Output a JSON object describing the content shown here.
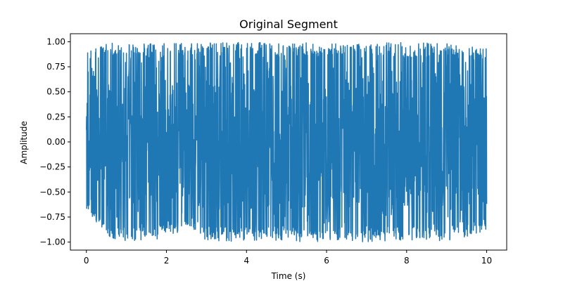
{
  "chart_data": {
    "type": "line",
    "title": "Original Segment",
    "xlabel": "Time (s)",
    "ylabel": "Amplitude",
    "xlim": [
      -0.4,
      10.5
    ],
    "ylim": [
      -1.08,
      1.08
    ],
    "xticks": [
      0,
      2,
      4,
      6,
      8,
      10
    ],
    "xtick_labels": [
      "0",
      "2",
      "4",
      "6",
      "8",
      "10"
    ],
    "yticks": [
      -1.0,
      -0.75,
      -0.5,
      -0.25,
      0.0,
      0.25,
      0.5,
      0.75,
      1.0
    ],
    "ytick_labels": [
      "−1.00",
      "−0.75",
      "−0.50",
      "−0.25",
      "0.00",
      "0.25",
      "0.50",
      "0.75",
      "1.00"
    ],
    "grid": false,
    "legend": "none",
    "series": [
      {
        "color": "#1f77b4",
        "x_range": [
          0,
          10
        ],
        "envelope_t": [
          0,
          0.5,
          1,
          1.5,
          2,
          2.5,
          3,
          3.5,
          4,
          4.5,
          5,
          5.5,
          6,
          6.5,
          7,
          7.5,
          8,
          8.5,
          9,
          9.5,
          10
        ],
        "envelope_max": [
          0.96,
          0.99,
          0.98,
          0.98,
          0.99,
          0.98,
          0.99,
          0.99,
          1.0,
          0.99,
          1.0,
          1.0,
          0.99,
          0.98,
          0.98,
          1.0,
          0.99,
          0.99,
          0.99,
          0.98,
          0.93
        ],
        "envelope_min": [
          -0.66,
          -0.96,
          -0.99,
          -0.98,
          -0.97,
          -0.86,
          -0.99,
          -0.99,
          -1.0,
          -0.98,
          -0.99,
          -1.0,
          -0.99,
          -0.99,
          -1.0,
          -0.99,
          -0.98,
          -0.98,
          -0.99,
          -0.95,
          -0.88
        ]
      }
    ]
  }
}
